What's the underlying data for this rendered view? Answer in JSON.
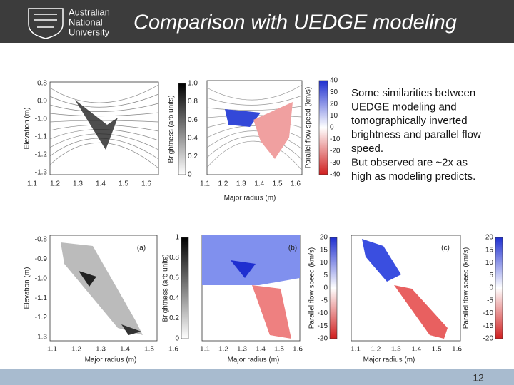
{
  "header": {
    "logo": [
      "Australian",
      "National",
      "University"
    ],
    "title": "Comparison with UEDGE modeling"
  },
  "body_text": [
    "Some similarities between",
    "UEDGE modeling and",
    "tomographically inverted",
    "brightness and parallel flow",
    "speed.",
    "But observed are ~2x as",
    "high as modeling predicts."
  ],
  "figures": [
    {
      "ylabel": "Elevation (m)",
      "yticks": [
        "-0.8",
        "-0.9",
        "-1.0",
        "-1.1",
        "-1.2",
        "-1.3"
      ],
      "xticks": [
        "1.1",
        "1.2",
        "1.3",
        "1.4",
        "1.5",
        "1.6"
      ],
      "colorbar_label": "Brightness (arb units)",
      "colorbar_ticks": [
        "1.0",
        "0.8",
        "0.6",
        "0.4",
        "0.2",
        "0"
      ]
    },
    {
      "xticks": [
        "1.1",
        "1.2",
        "1.3",
        "1.4",
        "1.5",
        "1.6"
      ],
      "xlabel": "Major radius (m)",
      "colorbar_label": "Parallel flow speed (km/s)",
      "colorbar_ticks": [
        "40",
        "30",
        "20",
        "10",
        "0",
        "-10",
        "-20",
        "-30",
        "-40"
      ]
    },
    {
      "ylabel": "Elevation (m)",
      "yticks": [
        "-0.8",
        "-0.9",
        "-1.0",
        "-1.1",
        "-1.2",
        "-1.3"
      ],
      "xticks": [
        "1.1",
        "1.2",
        "1.3",
        "1.4",
        "1.5",
        "1.6"
      ],
      "xlabel": "Major radius (m)",
      "colorbar_label": "Brightness (arb units)",
      "colorbar_ticks": [
        "1",
        "0.8",
        "0.6",
        "0.4",
        "0.2",
        "0"
      ],
      "panel_label": "(a)"
    },
    {
      "xticks": [
        "1.1",
        "1.2",
        "1.3",
        "1.4",
        "1.5",
        "1.6"
      ],
      "xlabel": "Major radius (m)",
      "colorbar_label": "Parallel flow speed (km/s)",
      "colorbar_ticks": [
        "20",
        "15",
        "10",
        "5",
        "0",
        "-5",
        "-10",
        "-15",
        "-20"
      ],
      "panel_label": "(b)"
    },
    {
      "xticks": [
        "1.1",
        "1.2",
        "1.3",
        "1.4",
        "1.5",
        "1.6"
      ],
      "xlabel": "Major radius (m)",
      "colorbar_label": "Parallel flow speed (km/s)",
      "colorbar_ticks": [
        "20",
        "15",
        "10",
        "5",
        "0",
        "-5",
        "-10",
        "-15",
        "-20"
      ],
      "panel_label": "(c)"
    }
  ],
  "page_number": "12"
}
